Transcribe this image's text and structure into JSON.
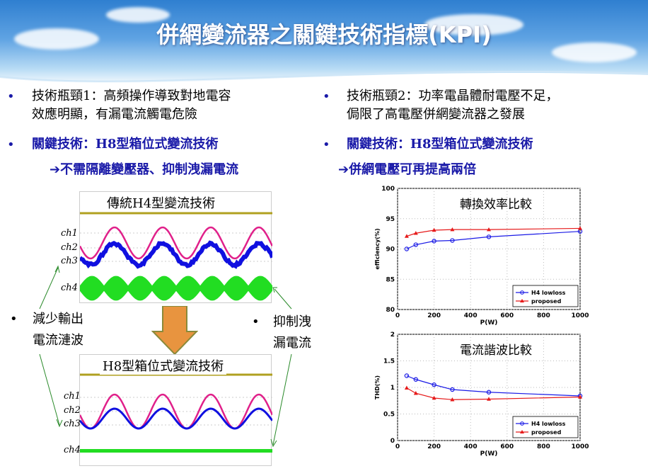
{
  "title": "併網變流器之關鍵技術指標(KPI)",
  "left_column": {
    "line1": "技術瓶頸1：高頻操作導致對地電容",
    "line1b": "效應明顯，有漏電流觸電危險",
    "line2": "關鍵技術：H8型箱位式變流技術",
    "line3": "不需隔離變壓器、抑制洩漏電流"
  },
  "right_column": {
    "line1": "技術瓶頸2：功率電晶體耐電壓不足，",
    "line1b": "侷限了高電壓併網變流器之發展",
    "line2": "關鍵技術：H8型箱位式變流技術",
    "line3": "併網電壓可再提高兩倍"
  },
  "scope_top": {
    "title": "傳統H4型變流技術",
    "channels": [
      "ch1",
      "ch2",
      "ch3",
      "ch4"
    ]
  },
  "scope_bottom": {
    "title": "H8型箱位式變流技術",
    "channels": [
      "ch1",
      "ch2",
      "ch3",
      "ch4"
    ]
  },
  "notes": {
    "left_a": "減少輸出",
    "left_b": "電流漣波",
    "right_a": "抑制洩",
    "right_b": "漏電流"
  },
  "chart_data": [
    {
      "type": "line",
      "title": "轉換效率比較",
      "xlabel": "P(W)",
      "ylabel": "efficiency(%)",
      "xlim": [
        0,
        1000
      ],
      "ylim": [
        80,
        100
      ],
      "xticks": [
        0,
        200,
        400,
        600,
        800,
        1000
      ],
      "yticks": [
        80,
        85,
        90,
        95,
        100
      ],
      "grid": true,
      "legend": "bottom-right",
      "x": [
        50,
        100,
        200,
        300,
        500,
        1000
      ],
      "series": [
        {
          "name": "H4 lowloss",
          "color": "#1a1ae6",
          "marker": "circle",
          "values": [
            90.0,
            90.7,
            91.3,
            91.4,
            92.0,
            92.9
          ]
        },
        {
          "name": "proposed",
          "color": "#e61a1a",
          "marker": "triangle",
          "values": [
            92.1,
            92.6,
            93.1,
            93.2,
            93.2,
            93.4
          ]
        }
      ]
    },
    {
      "type": "line",
      "title": "電流諧波比較",
      "xlabel": "P(W)",
      "ylabel": "THD(%)",
      "xlim": [
        0,
        1000
      ],
      "ylim": [
        0,
        2
      ],
      "xticks": [
        0,
        200,
        400,
        600,
        800,
        1000
      ],
      "yticks": [
        0,
        0.5,
        1,
        1.5,
        2
      ],
      "grid": true,
      "legend": "bottom-right",
      "x": [
        50,
        100,
        200,
        300,
        500,
        1000
      ],
      "series": [
        {
          "name": "H4 lowloss",
          "color": "#1a1ae6",
          "marker": "circle",
          "values": [
            1.22,
            1.15,
            1.05,
            0.96,
            0.91,
            0.84
          ]
        },
        {
          "name": "proposed",
          "color": "#e61a1a",
          "marker": "triangle",
          "values": [
            0.99,
            0.89,
            0.8,
            0.77,
            0.78,
            0.82
          ]
        }
      ]
    }
  ]
}
